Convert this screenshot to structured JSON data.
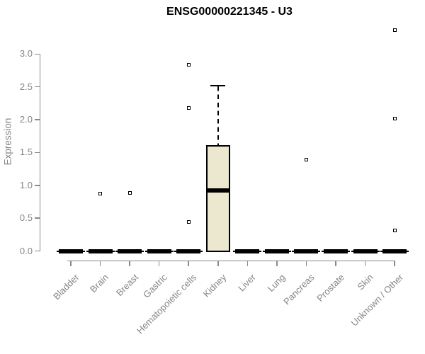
{
  "chart_data": {
    "type": "boxplot",
    "title": "ENSG00000221345 - U3",
    "ylabel": "Expression",
    "xlabel": "",
    "ylim": [
      0.0,
      3.4
    ],
    "yticks": [
      0.0,
      0.5,
      1.0,
      1.5,
      2.0,
      2.5,
      3.0
    ],
    "grid": "off",
    "legend": "none",
    "categories": [
      "Bladder",
      "Brain",
      "Breast",
      "Gastric",
      "Hematopoietic cells",
      "Kidney",
      "Liver",
      "Lung",
      "Pancreas",
      "Prostate",
      "Skin",
      "Unknown / Other"
    ],
    "boxes": [
      {
        "category": "Bladder",
        "whisker_low": 0,
        "q1": 0,
        "median": 0,
        "q3": 0,
        "whisker_high": 0,
        "outliers": []
      },
      {
        "category": "Brain",
        "whisker_low": 0,
        "q1": 0,
        "median": 0,
        "q3": 0,
        "whisker_high": 0,
        "outliers": [
          0.87
        ]
      },
      {
        "category": "Breast",
        "whisker_low": 0,
        "q1": 0,
        "median": 0,
        "q3": 0,
        "whisker_high": 0,
        "outliers": [
          0.88
        ]
      },
      {
        "category": "Gastric",
        "whisker_low": 0,
        "q1": 0,
        "median": 0,
        "q3": 0,
        "whisker_high": 0,
        "outliers": []
      },
      {
        "category": "Hematopoietic cells",
        "whisker_low": 0,
        "q1": 0,
        "median": 0,
        "q3": 0,
        "whisker_high": 0,
        "outliers": [
          0.44,
          2.18,
          2.84
        ]
      },
      {
        "category": "Kidney",
        "whisker_low": 0,
        "q1": 0,
        "median": 0.92,
        "q3": 1.6,
        "whisker_high": 2.52,
        "outliers": []
      },
      {
        "category": "Liver",
        "whisker_low": 0,
        "q1": 0,
        "median": 0,
        "q3": 0,
        "whisker_high": 0,
        "outliers": []
      },
      {
        "category": "Lung",
        "whisker_low": 0,
        "q1": 0,
        "median": 0,
        "q3": 0,
        "whisker_high": 0,
        "outliers": []
      },
      {
        "category": "Pancreas",
        "whisker_low": 0,
        "q1": 0,
        "median": 0,
        "q3": 0,
        "whisker_high": 0,
        "outliers": [
          1.39
        ]
      },
      {
        "category": "Prostate",
        "whisker_low": 0,
        "q1": 0,
        "median": 0,
        "q3": 0,
        "whisker_high": 0,
        "outliers": []
      },
      {
        "category": "Skin",
        "whisker_low": 0,
        "q1": 0,
        "median": 0,
        "q3": 0,
        "whisker_high": 0,
        "outliers": []
      },
      {
        "category": "Unknown / Other",
        "whisker_low": 0,
        "q1": 0,
        "median": 0,
        "q3": 0,
        "whisker_high": 0,
        "outliers": [
          0.31,
          2.02,
          3.36
        ]
      }
    ],
    "colors": {
      "box_fill": "#ece8d0",
      "box_border": "#000000",
      "median": "#000000",
      "axis": "#8a8a8a",
      "tick_label": "#858585",
      "title": "#000000",
      "background": "#ffffff"
    }
  }
}
